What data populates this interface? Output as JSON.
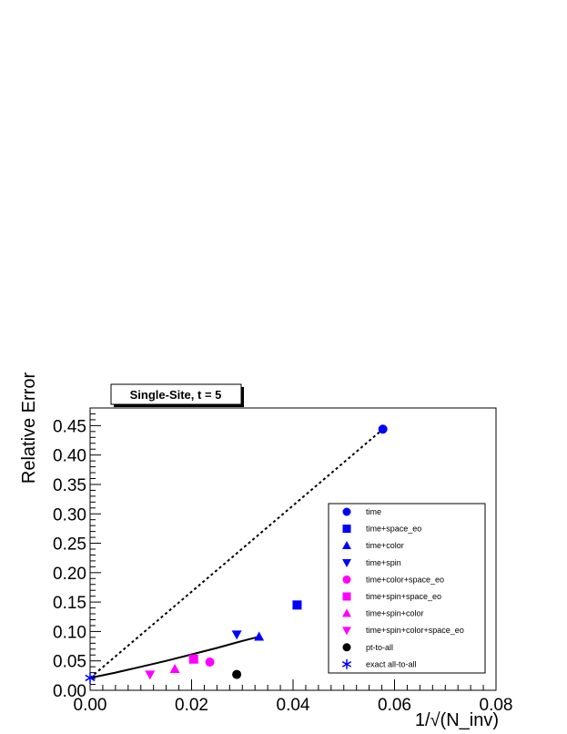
{
  "chart_data": {
    "type": "scatter",
    "title": "Single-Site, t = 5",
    "xlabel": "1/√(N_inv)",
    "ylabel": "Relative Error",
    "xlim": [
      0.0,
      0.08
    ],
    "ylim": [
      0.0,
      0.48
    ],
    "x_ticks": [
      "0.00",
      "0.02",
      "0.04",
      "0.06",
      "0.08"
    ],
    "y_ticks": [
      "0.00",
      "0.05",
      "0.10",
      "0.15",
      "0.20",
      "0.25",
      "0.30",
      "0.35",
      "0.40",
      "0.45"
    ],
    "grid": false,
    "legend_position": "right",
    "series": [
      {
        "name": "time",
        "marker": "circle",
        "color": "#0000ff",
        "points": [
          [
            0.0577,
            0.444
          ]
        ]
      },
      {
        "name": "time+space_eo",
        "marker": "square",
        "color": "#0000ff",
        "points": [
          [
            0.0408,
            0.145
          ]
        ]
      },
      {
        "name": "time+color",
        "marker": "triangle-up",
        "color": "#0000ff",
        "points": [
          [
            0.0333,
            0.091
          ]
        ]
      },
      {
        "name": "time+spin",
        "marker": "triangle-down",
        "color": "#0000ff",
        "points": [
          [
            0.0289,
            0.095
          ]
        ]
      },
      {
        "name": "time+color+space_eo",
        "marker": "circle",
        "color": "#ff00ff",
        "points": [
          [
            0.0236,
            0.048
          ]
        ]
      },
      {
        "name": "time+spin+space_eo",
        "marker": "square",
        "color": "#ff00ff",
        "points": [
          [
            0.0204,
            0.053
          ]
        ]
      },
      {
        "name": "time+spin+color",
        "marker": "triangle-up",
        "color": "#ff00ff",
        "points": [
          [
            0.0167,
            0.036
          ]
        ]
      },
      {
        "name": "time+spin+color+space_eo",
        "marker": "triangle-down",
        "color": "#ff00ff",
        "points": [
          [
            0.0118,
            0.027
          ]
        ]
      },
      {
        "name": "pt-to-all",
        "marker": "circle",
        "color": "#000000",
        "points": [
          [
            0.0289,
            0.027
          ]
        ]
      },
      {
        "name": "exact all-to-all",
        "marker": "asterisk",
        "color": "#0000ff",
        "points": [
          [
            0.0,
            0.021
          ]
        ]
      }
    ],
    "fit_lines": [
      {
        "style": "dotted",
        "color": "#000000",
        "points": [
          [
            0.0,
            0.021
          ],
          [
            0.0577,
            0.444
          ]
        ]
      },
      {
        "style": "solid",
        "color": "#000000",
        "points": [
          [
            0.0,
            0.021
          ],
          [
            0.005,
            0.03
          ],
          [
            0.01,
            0.04
          ],
          [
            0.015,
            0.05
          ],
          [
            0.02,
            0.061
          ],
          [
            0.025,
            0.072
          ],
          [
            0.03,
            0.084
          ],
          [
            0.0333,
            0.091
          ]
        ]
      }
    ]
  }
}
